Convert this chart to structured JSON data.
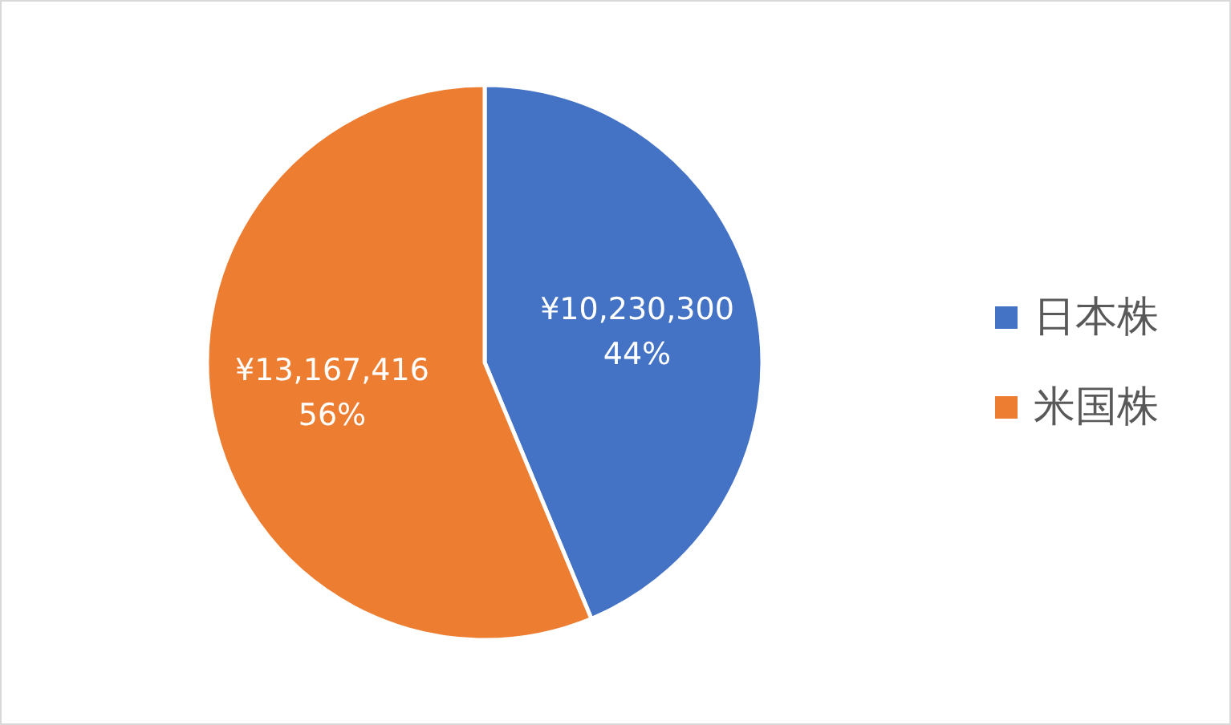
{
  "chart_data": {
    "type": "pie",
    "categories": [
      "日本株",
      "米国株"
    ],
    "values": [
      10230300,
      13167416
    ],
    "colors": [
      "#4472c4",
      "#ed7d31"
    ],
    "value_labels": [
      "¥10,230,300\n44%",
      "¥13,167,416\n56%"
    ],
    "legend": "right"
  }
}
